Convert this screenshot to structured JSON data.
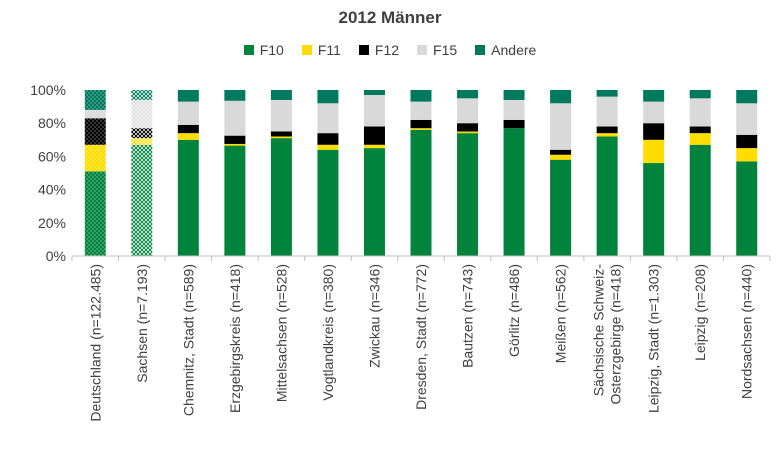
{
  "chart_data": {
    "type": "bar",
    "stacked": true,
    "normalized": true,
    "title": "2012 Männer",
    "xlabel": "",
    "ylabel": "",
    "ylim": [
      0,
      100
    ],
    "y_ticks": [
      "0%",
      "20%",
      "40%",
      "60%",
      "80%",
      "100%"
    ],
    "grid": false,
    "legend_position": "top",
    "categories": [
      "Deutschland (n=122.485)",
      "Sachsen  (n=7.193)",
      "Chemnitz, Stadt  (n=589)",
      "Erzgebirgskreis (n=418)",
      "Mittelsachsen (n=528)",
      "Vogtlandkreis  (n=380)",
      "Zwickau  (n=346)",
      "Dresden, Stadt  (n=772)",
      "Bautzen (n=743)",
      "Görlitz (n=486)",
      "Meißen (n=562)",
      "Sächsische Schweiz-Osterzgebirge (n=418)",
      "Leipzig, Stadt (n=1.303)",
      "Leipzig (n=208)",
      "Nordsachsen (n=440)"
    ],
    "category_lines": [
      [
        "Deutschland (n=122.485)"
      ],
      [
        "Sachsen  (n=7.193)"
      ],
      [
        "Chemnitz, Stadt  (n=589)"
      ],
      [
        "Erzgebirgskreis (n=418)"
      ],
      [
        "Mittelsachsen (n=528)"
      ],
      [
        "Vogtlandkreis  (n=380)"
      ],
      [
        "Zwickau  (n=346)"
      ],
      [
        "Dresden, Stadt  (n=772)"
      ],
      [
        "Bautzen (n=743)"
      ],
      [
        "Görlitz (n=486)"
      ],
      [
        "Meißen (n=562)"
      ],
      [
        "Sächsische Schweiz-",
        "Osterzgebirge (n=418)"
      ],
      [
        "Leipzig, Stadt (n=1.303)"
      ],
      [
        "Leipzig (n=208)"
      ],
      [
        "Nordsachsen (n=440)"
      ]
    ],
    "patterned_categories": [
      "Deutschland (n=122.485)",
      "Sachsen  (n=7.193)"
    ],
    "series": [
      {
        "name": "F10",
        "color": "#00843d",
        "values": [
          51,
          67,
          70,
          66.5,
          71,
          64,
          65,
          76,
          74,
          77,
          58,
          72,
          56,
          67,
          57
        ]
      },
      {
        "name": "F11",
        "color": "#ffdd00",
        "values": [
          16,
          4,
          4,
          1,
          1,
          3,
          2,
          1,
          1,
          0,
          3,
          2,
          14,
          7,
          8
        ]
      },
      {
        "name": "F12",
        "color": "#000000",
        "values": [
          16,
          6,
          5,
          5,
          3,
          7,
          11,
          5,
          5,
          5,
          3,
          4,
          10,
          4,
          8
        ]
      },
      {
        "name": "F15",
        "color": "#d9d9d9",
        "values": [
          5,
          17,
          14,
          21,
          19,
          18,
          19,
          11,
          15,
          12,
          28,
          18,
          13,
          17,
          19
        ]
      },
      {
        "name": "Andere",
        "color": "#007a5e",
        "values": [
          12,
          6,
          7,
          6.5,
          6,
          8,
          3,
          7,
          5,
          6,
          8,
          4,
          7,
          5,
          8
        ]
      }
    ]
  }
}
